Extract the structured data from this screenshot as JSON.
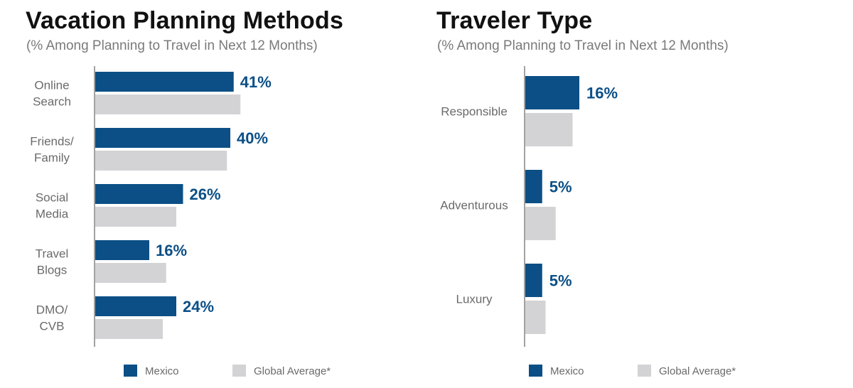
{
  "colors": {
    "mexico": "#0b4f86",
    "global": "#d3d3d5",
    "axis": "#444444"
  },
  "charts": [
    {
      "title": "Vacation Planning Methods",
      "subtitle": "(% Among Planning to Travel in Next 12 Months)"
    },
    {
      "title": "Traveler Type",
      "subtitle": "(% Among Planning to Travel in Next 12 Months)"
    }
  ],
  "chart_data": [
    {
      "type": "bar",
      "orientation": "horizontal",
      "title": "Vacation Planning Methods",
      "subtitle": "(% Among Planning to Travel in Next 12 Months)",
      "categories": [
        [
          "Online",
          "Search"
        ],
        [
          "Friends/",
          "Family"
        ],
        [
          "Social",
          "Media"
        ],
        [
          "Travel",
          "Blogs"
        ],
        [
          "DMO/",
          "CVB"
        ]
      ],
      "series": [
        {
          "name": "Mexico",
          "values": [
            41,
            40,
            26,
            16,
            24
          ],
          "labels": [
            "41%",
            "40%",
            "26%",
            "16%",
            "24%"
          ]
        },
        {
          "name": "Global Average*",
          "values": [
            43,
            39,
            24,
            21,
            20
          ]
        }
      ],
      "xlim": [
        0,
        100
      ],
      "grid": false,
      "legend": "bottom"
    },
    {
      "type": "bar",
      "orientation": "horizontal",
      "title": "Traveler Type",
      "subtitle": "(% Among Planning to Travel in Next 12 Months)",
      "categories": [
        [
          "Responsible"
        ],
        [
          "Adventurous"
        ],
        [
          "Luxury"
        ]
      ],
      "series": [
        {
          "name": "Mexico",
          "values": [
            16,
            5,
            5
          ],
          "labels": [
            "16%",
            "5%",
            "5%"
          ]
        },
        {
          "name": "Global Average*",
          "values": [
            14,
            9,
            6
          ]
        }
      ],
      "xlim": [
        0,
        100
      ],
      "grid": false,
      "legend": "bottom"
    }
  ]
}
